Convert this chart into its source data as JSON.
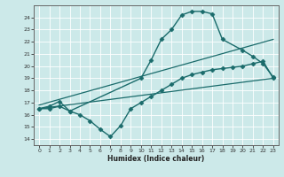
{
  "xlabel": "Humidex (Indice chaleur)",
  "bg_color": "#cce9e9",
  "line_color": "#1a6b6b",
  "grid_color": "#ffffff",
  "xlim": [
    -0.5,
    23.5
  ],
  "ylim": [
    13.5,
    25.0
  ],
  "yticks": [
    14,
    15,
    16,
    17,
    18,
    19,
    20,
    21,
    22,
    23,
    24
  ],
  "xticks": [
    0,
    1,
    2,
    3,
    4,
    5,
    6,
    7,
    8,
    9,
    10,
    11,
    12,
    13,
    14,
    15,
    16,
    17,
    18,
    19,
    20,
    21,
    22,
    23
  ],
  "series": [
    {
      "x": [
        0,
        1,
        2,
        3,
        10,
        11,
        12,
        13,
        14,
        15,
        16,
        17,
        18,
        20,
        21,
        22,
        23
      ],
      "y": [
        16.5,
        16.7,
        17.1,
        16.3,
        19.0,
        20.5,
        22.2,
        23.0,
        24.2,
        24.5,
        24.5,
        24.3,
        22.2,
        21.3,
        20.8,
        20.2,
        19.1
      ],
      "marker": "D",
      "markersize": 2.5,
      "linewidth": 1.0
    },
    {
      "x": [
        0,
        1,
        2,
        3,
        4,
        5,
        6,
        7,
        8,
        9,
        10,
        11,
        12,
        13,
        14,
        15,
        16,
        17,
        18,
        19,
        20,
        21,
        22,
        23
      ],
      "y": [
        16.5,
        16.5,
        16.7,
        16.3,
        16.0,
        15.5,
        14.8,
        14.2,
        15.1,
        16.5,
        17.0,
        17.5,
        18.0,
        18.5,
        19.0,
        19.3,
        19.5,
        19.7,
        19.8,
        19.9,
        20.0,
        20.2,
        20.4,
        19.0
      ],
      "marker": "D",
      "markersize": 2.5,
      "linewidth": 1.0
    },
    {
      "x": [
        0,
        23
      ],
      "y": [
        16.5,
        19.0
      ],
      "marker": null,
      "linewidth": 0.9
    },
    {
      "x": [
        0,
        23
      ],
      "y": [
        16.8,
        22.2
      ],
      "marker": null,
      "linewidth": 0.9
    }
  ]
}
